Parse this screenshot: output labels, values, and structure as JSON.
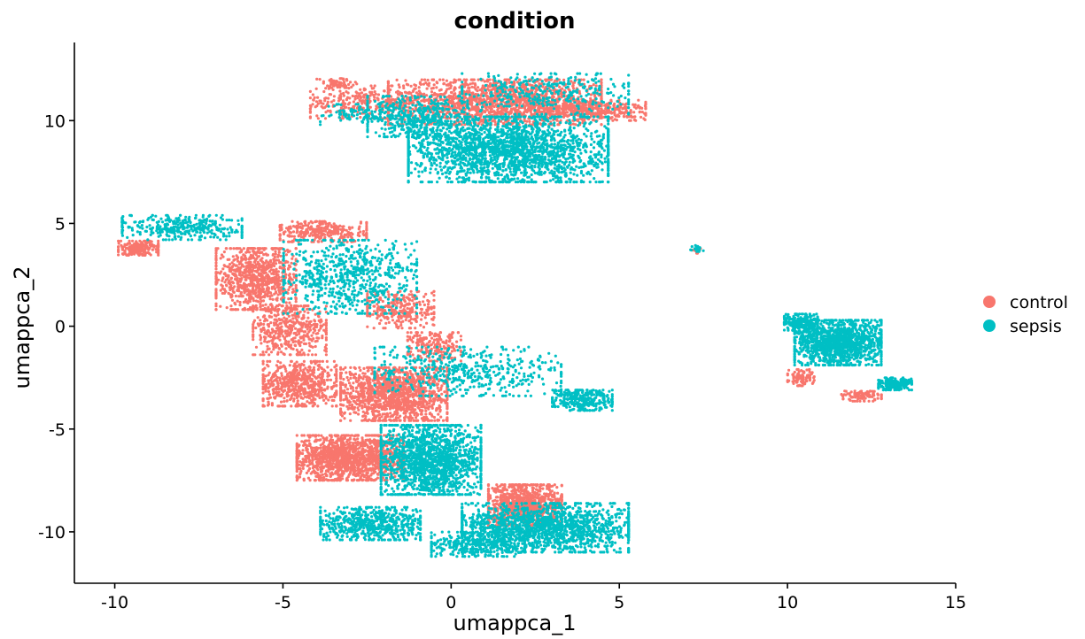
{
  "chart_data": {
    "type": "scatter",
    "title": "condition",
    "xlabel": "umappca_1",
    "ylabel": "umappca_2",
    "xlim": [
      -11.2,
      15.0
    ],
    "ylim": [
      -12.5,
      13.8
    ],
    "xticks": [
      "-10",
      "-5",
      "0",
      "5",
      "10",
      "15"
    ],
    "xtick_values": [
      -10,
      -5,
      0,
      5,
      10,
      15
    ],
    "yticks": [
      "-10",
      "-5",
      "0",
      "5",
      "10"
    ],
    "ytick_values": [
      -10,
      -5,
      0,
      5,
      10
    ],
    "grid": false,
    "legend_position": "right",
    "series": [
      {
        "name": "control",
        "color": "#F8766D",
        "clusters": [
          {
            "cx": 1.3,
            "cy": 10.9,
            "rx": 3.2,
            "ry": 1.1,
            "n": 1700
          },
          {
            "cx": 4.2,
            "cy": 10.5,
            "rx": 1.6,
            "ry": 0.5,
            "n": 400
          },
          {
            "cx": -2.8,
            "cy": 10.9,
            "rx": 1.4,
            "ry": 0.8,
            "n": 250
          },
          {
            "cx": -3.4,
            "cy": 11.8,
            "rx": 0.6,
            "ry": 0.25,
            "n": 60
          },
          {
            "cx": -9.3,
            "cy": 3.8,
            "rx": 0.6,
            "ry": 0.35,
            "n": 200
          },
          {
            "cx": -5.8,
            "cy": 2.3,
            "rx": 1.2,
            "ry": 1.5,
            "n": 900
          },
          {
            "cx": -3.8,
            "cy": 4.6,
            "rx": 1.3,
            "ry": 0.5,
            "n": 300
          },
          {
            "cx": -4.8,
            "cy": -0.2,
            "rx": 1.1,
            "ry": 1.2,
            "n": 450
          },
          {
            "cx": -4.5,
            "cy": -2.8,
            "rx": 1.1,
            "ry": 1.1,
            "n": 600
          },
          {
            "cx": -1.5,
            "cy": 0.8,
            "rx": 1.0,
            "ry": 0.9,
            "n": 300
          },
          {
            "cx": -1.7,
            "cy": -3.3,
            "rx": 1.6,
            "ry": 1.3,
            "n": 1300
          },
          {
            "cx": -0.5,
            "cy": -1.0,
            "rx": 0.8,
            "ry": 0.7,
            "n": 200
          },
          {
            "cx": -3.0,
            "cy": -6.4,
            "rx": 1.6,
            "ry": 1.1,
            "n": 1400
          },
          {
            "cx": 2.2,
            "cy": -8.7,
            "rx": 1.1,
            "ry": 1.0,
            "n": 900
          },
          {
            "cx": 10.4,
            "cy": -2.5,
            "rx": 0.4,
            "ry": 0.4,
            "n": 100
          },
          {
            "cx": 12.2,
            "cy": -3.4,
            "rx": 0.6,
            "ry": 0.25,
            "n": 90
          },
          {
            "cx": 7.3,
            "cy": 3.7,
            "rx": 0.15,
            "ry": 0.15,
            "n": 10
          }
        ]
      },
      {
        "name": "sepsis",
        "color": "#00BFC4",
        "clusters": [
          {
            "cx": 1.7,
            "cy": 8.6,
            "rx": 3.0,
            "ry": 1.6,
            "n": 2200
          },
          {
            "cx": -1.0,
            "cy": 10.2,
            "rx": 1.5,
            "ry": 1.0,
            "n": 450
          },
          {
            "cx": 2.8,
            "cy": 11.3,
            "rx": 2.5,
            "ry": 1.0,
            "n": 350
          },
          {
            "cx": -3.0,
            "cy": 10.3,
            "rx": 0.9,
            "ry": 0.5,
            "n": 80
          },
          {
            "cx": -8.0,
            "cy": 4.8,
            "rx": 1.8,
            "ry": 0.6,
            "n": 350
          },
          {
            "cx": -3.0,
            "cy": 2.4,
            "rx": 2.0,
            "ry": 1.8,
            "n": 700
          },
          {
            "cx": 0.5,
            "cy": -2.2,
            "rx": 2.8,
            "ry": 1.2,
            "n": 500
          },
          {
            "cx": 3.9,
            "cy": -3.6,
            "rx": 0.9,
            "ry": 0.5,
            "n": 300
          },
          {
            "cx": -0.6,
            "cy": -6.5,
            "rx": 1.5,
            "ry": 1.7,
            "n": 1600
          },
          {
            "cx": -2.4,
            "cy": -9.6,
            "rx": 1.5,
            "ry": 0.8,
            "n": 650
          },
          {
            "cx": 2.8,
            "cy": -9.8,
            "rx": 2.5,
            "ry": 1.2,
            "n": 1500
          },
          {
            "cx": 0.8,
            "cy": -10.6,
            "rx": 1.4,
            "ry": 0.6,
            "n": 400
          },
          {
            "cx": 11.5,
            "cy": -0.8,
            "rx": 1.3,
            "ry": 1.1,
            "n": 1300
          },
          {
            "cx": 13.2,
            "cy": -2.8,
            "rx": 0.5,
            "ry": 0.3,
            "n": 180
          },
          {
            "cx": 10.4,
            "cy": 0.2,
            "rx": 0.5,
            "ry": 0.4,
            "n": 200
          },
          {
            "cx": 7.3,
            "cy": 3.8,
            "rx": 0.2,
            "ry": 0.2,
            "n": 20
          }
        ]
      }
    ]
  }
}
